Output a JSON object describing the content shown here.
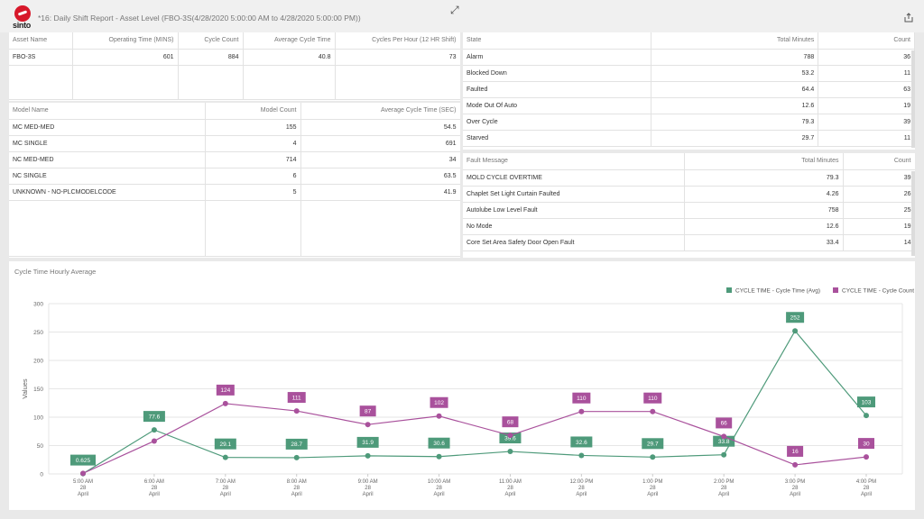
{
  "header": {
    "brand": "sinto",
    "title": "*16: Daily Shift Report - Asset Level (FBO-3S(4/28/2020 5:00:00 AM to 4/28/2020 5:00:00 PM))"
  },
  "asset_table": {
    "columns": [
      "Asset Name",
      "Operating Time (MINS)",
      "Cycle Count",
      "Average Cycle Time",
      "Cycles Per Hour (12 HR Shift)"
    ],
    "rows": [
      [
        "FBO-3S",
        "601",
        "884",
        "40.8",
        "73"
      ]
    ]
  },
  "model_table": {
    "columns": [
      "Model Name",
      "Model Count",
      "Average Cycle Time (SEC)"
    ],
    "rows": [
      [
        "MC MED-MED",
        "155",
        "54.5"
      ],
      [
        "MC SINGLE",
        "4",
        "691"
      ],
      [
        "NC MED-MED",
        "714",
        "34"
      ],
      [
        "NC SINGLE",
        "6",
        "63.5"
      ],
      [
        "UNKNOWN - NO-PLCMODELCODE",
        "5",
        "41.9"
      ]
    ]
  },
  "state_table": {
    "columns": [
      "State",
      "Total Minutes",
      "Count"
    ],
    "rows": [
      [
        "Alarm",
        "788",
        "36"
      ],
      [
        "Blocked Down",
        "53.2",
        "11"
      ],
      [
        "Faulted",
        "64.4",
        "63"
      ],
      [
        "Mode Out Of Auto",
        "12.6",
        "19"
      ],
      [
        "Over Cycle",
        "79.3",
        "39"
      ],
      [
        "Starved",
        "29.7",
        "11"
      ]
    ]
  },
  "fault_table": {
    "columns": [
      "Fault Message",
      "Total Minutes",
      "Count"
    ],
    "rows": [
      [
        "MOLD CYCLE OVERTIME",
        "79.3",
        "39"
      ],
      [
        "Chaplet Set Light Curtain Faulted",
        "4.26",
        "26"
      ],
      [
        "Autolube Low Level Fault",
        "758",
        "25"
      ],
      [
        "No Mode",
        "12.6",
        "19"
      ],
      [
        "Core Set Area Safety Door Open Fault",
        "33.4",
        "14"
      ]
    ]
  },
  "chart_data": {
    "type": "line",
    "title": "Cycle Time Hourly Average",
    "ylabel": "Values",
    "ylim": [
      0,
      300
    ],
    "yticks": [
      0,
      50,
      100,
      150,
      200,
      250,
      300
    ],
    "grid": true,
    "legend_position": "top-right",
    "x": [
      [
        "5:00 AM",
        "28",
        "April"
      ],
      [
        "6:00 AM",
        "28",
        "April"
      ],
      [
        "7:00 AM",
        "28",
        "April"
      ],
      [
        "8:00 AM",
        "28",
        "April"
      ],
      [
        "9:00 AM",
        "28",
        "April"
      ],
      [
        "10:00 AM",
        "28",
        "April"
      ],
      [
        "11:00 AM",
        "28",
        "April"
      ],
      [
        "12:00 PM",
        "28",
        "April"
      ],
      [
        "1:00 PM",
        "28",
        "April"
      ],
      [
        "2:00 PM",
        "28",
        "April"
      ],
      [
        "3:00 PM",
        "28",
        "April"
      ],
      [
        "4:00 PM",
        "28",
        "April"
      ]
    ],
    "series": [
      {
        "name": "CYCLE TIME - Cycle Time (Avg)",
        "color": "#4e9a7a",
        "values": [
          0.625,
          77.6,
          29.1,
          28.7,
          31.9,
          30.6,
          39.6,
          32.6,
          29.7,
          33.8,
          252,
          103
        ],
        "labels": [
          "0.625",
          "77.6",
          "29.1",
          "28.7",
          "31.9",
          "30.6",
          "39.6",
          "32.6",
          "29.7",
          "33.8",
          "252",
          "103"
        ]
      },
      {
        "name": "CYCLE TIME - Cycle Count",
        "color": "#a9519c",
        "values": [
          1,
          58,
          124,
          111,
          87,
          102,
          68,
          110,
          110,
          66,
          16,
          30
        ],
        "labels": [
          "",
          "",
          "124",
          "111",
          "87",
          "102",
          "68",
          "110",
          "110",
          "66",
          "16",
          "30"
        ]
      }
    ]
  }
}
